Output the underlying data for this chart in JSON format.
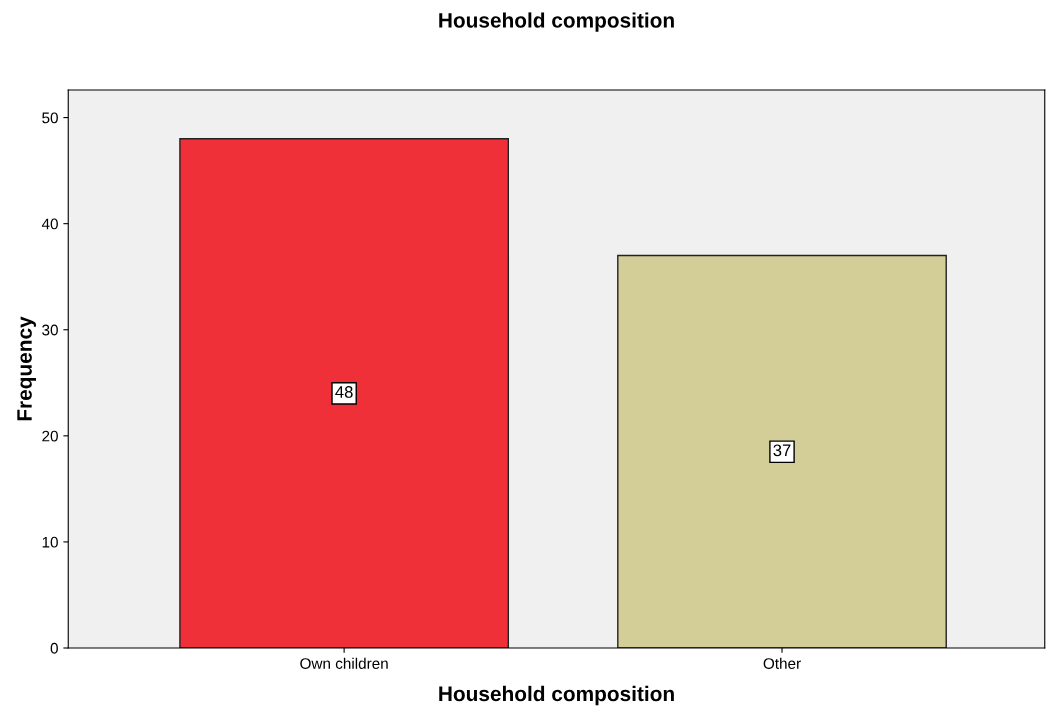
{
  "chart_data": {
    "type": "bar",
    "title": "Household composition",
    "xlabel": "Household composition",
    "ylabel": "Frequency",
    "categories": [
      "Own children",
      "Other"
    ],
    "values": [
      48,
      37
    ],
    "colors": [
      "#ef3038",
      "#d3ce97"
    ],
    "ylim": [
      0,
      52.6
    ],
    "yticks": [
      0,
      10,
      20,
      30,
      40,
      50
    ],
    "grid": false,
    "data_labels": true
  }
}
